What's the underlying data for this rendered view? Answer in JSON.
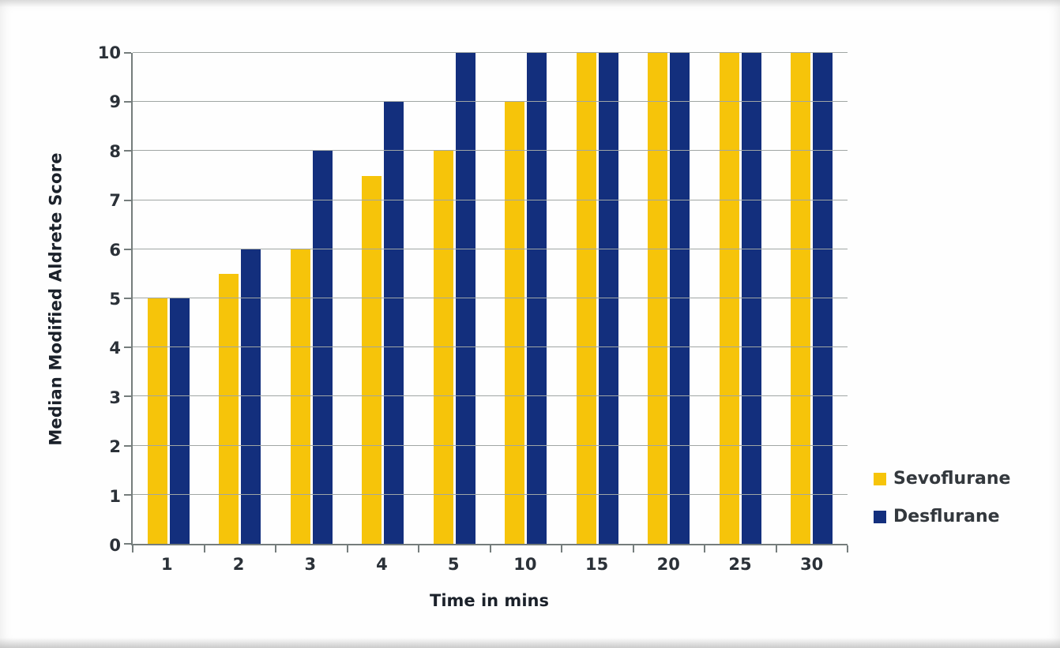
{
  "chart_data": {
    "type": "bar",
    "title": "",
    "xlabel": "Time in mins",
    "ylabel": "Median Modified Aldrete Score",
    "categories": [
      "1",
      "2",
      "3",
      "4",
      "5",
      "10",
      "15",
      "20",
      "25",
      "30"
    ],
    "series": [
      {
        "name": "Sevoflurane",
        "color": "#F6C40A",
        "values": [
          5,
          5.5,
          6,
          7.5,
          8,
          9,
          10,
          10,
          10,
          10
        ]
      },
      {
        "name": "Desflurane",
        "color": "#132F7D",
        "values": [
          5,
          6,
          8,
          9,
          10,
          10,
          10,
          10,
          10,
          10
        ]
      }
    ],
    "ylim": [
      0,
      10
    ],
    "yticks": [
      "0",
      "1",
      "2",
      "3",
      "4",
      "5",
      "6",
      "7",
      "8",
      "9",
      "10"
    ],
    "grid": true,
    "legend_position": "right"
  },
  "colors": {
    "grid": "#a0a6a4",
    "axis": "#757d7c",
    "tick_label": "#2b3138",
    "axis_title": "#1b212a",
    "legend_text": "#33383d",
    "background": "#fefefe"
  }
}
